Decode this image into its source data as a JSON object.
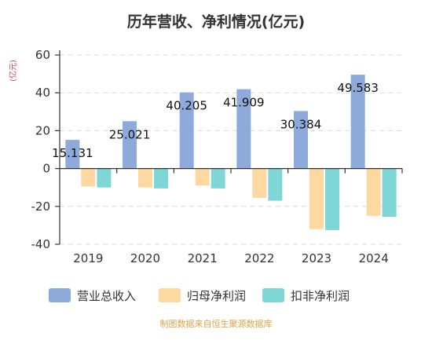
{
  "chart_data": {
    "type": "bar",
    "title": "历年营收、净利情况(亿元)",
    "ylabel": "(亿元)",
    "categories": [
      "2019",
      "2020",
      "2021",
      "2022",
      "2023",
      "2024"
    ],
    "ylim": [
      -40,
      60
    ],
    "yticks": [
      60,
      40,
      20,
      0,
      -20,
      -40
    ],
    "grid": true,
    "legend_position": "bottom",
    "series": [
      {
        "name": "营业总收入",
        "color": "#8eaadb",
        "values": [
          15.131,
          25.021,
          40.205,
          41.909,
          30.384,
          49.583
        ],
        "labels": [
          "15.131",
          "25.021",
          "40.205",
          "41.909",
          "30.384",
          "49.583"
        ]
      },
      {
        "name": "归母净利润",
        "color": "#fdd8a0",
        "values": [
          -9.5,
          -10.0,
          -9.0,
          -15.5,
          -32.0,
          -25.0
        ]
      },
      {
        "name": "扣非净利润",
        "color": "#7fd6d6",
        "values": [
          -10.0,
          -10.5,
          -10.5,
          -17.0,
          -32.5,
          -25.5
        ]
      }
    ],
    "source": "制图数据来自恒生聚源数据库"
  }
}
